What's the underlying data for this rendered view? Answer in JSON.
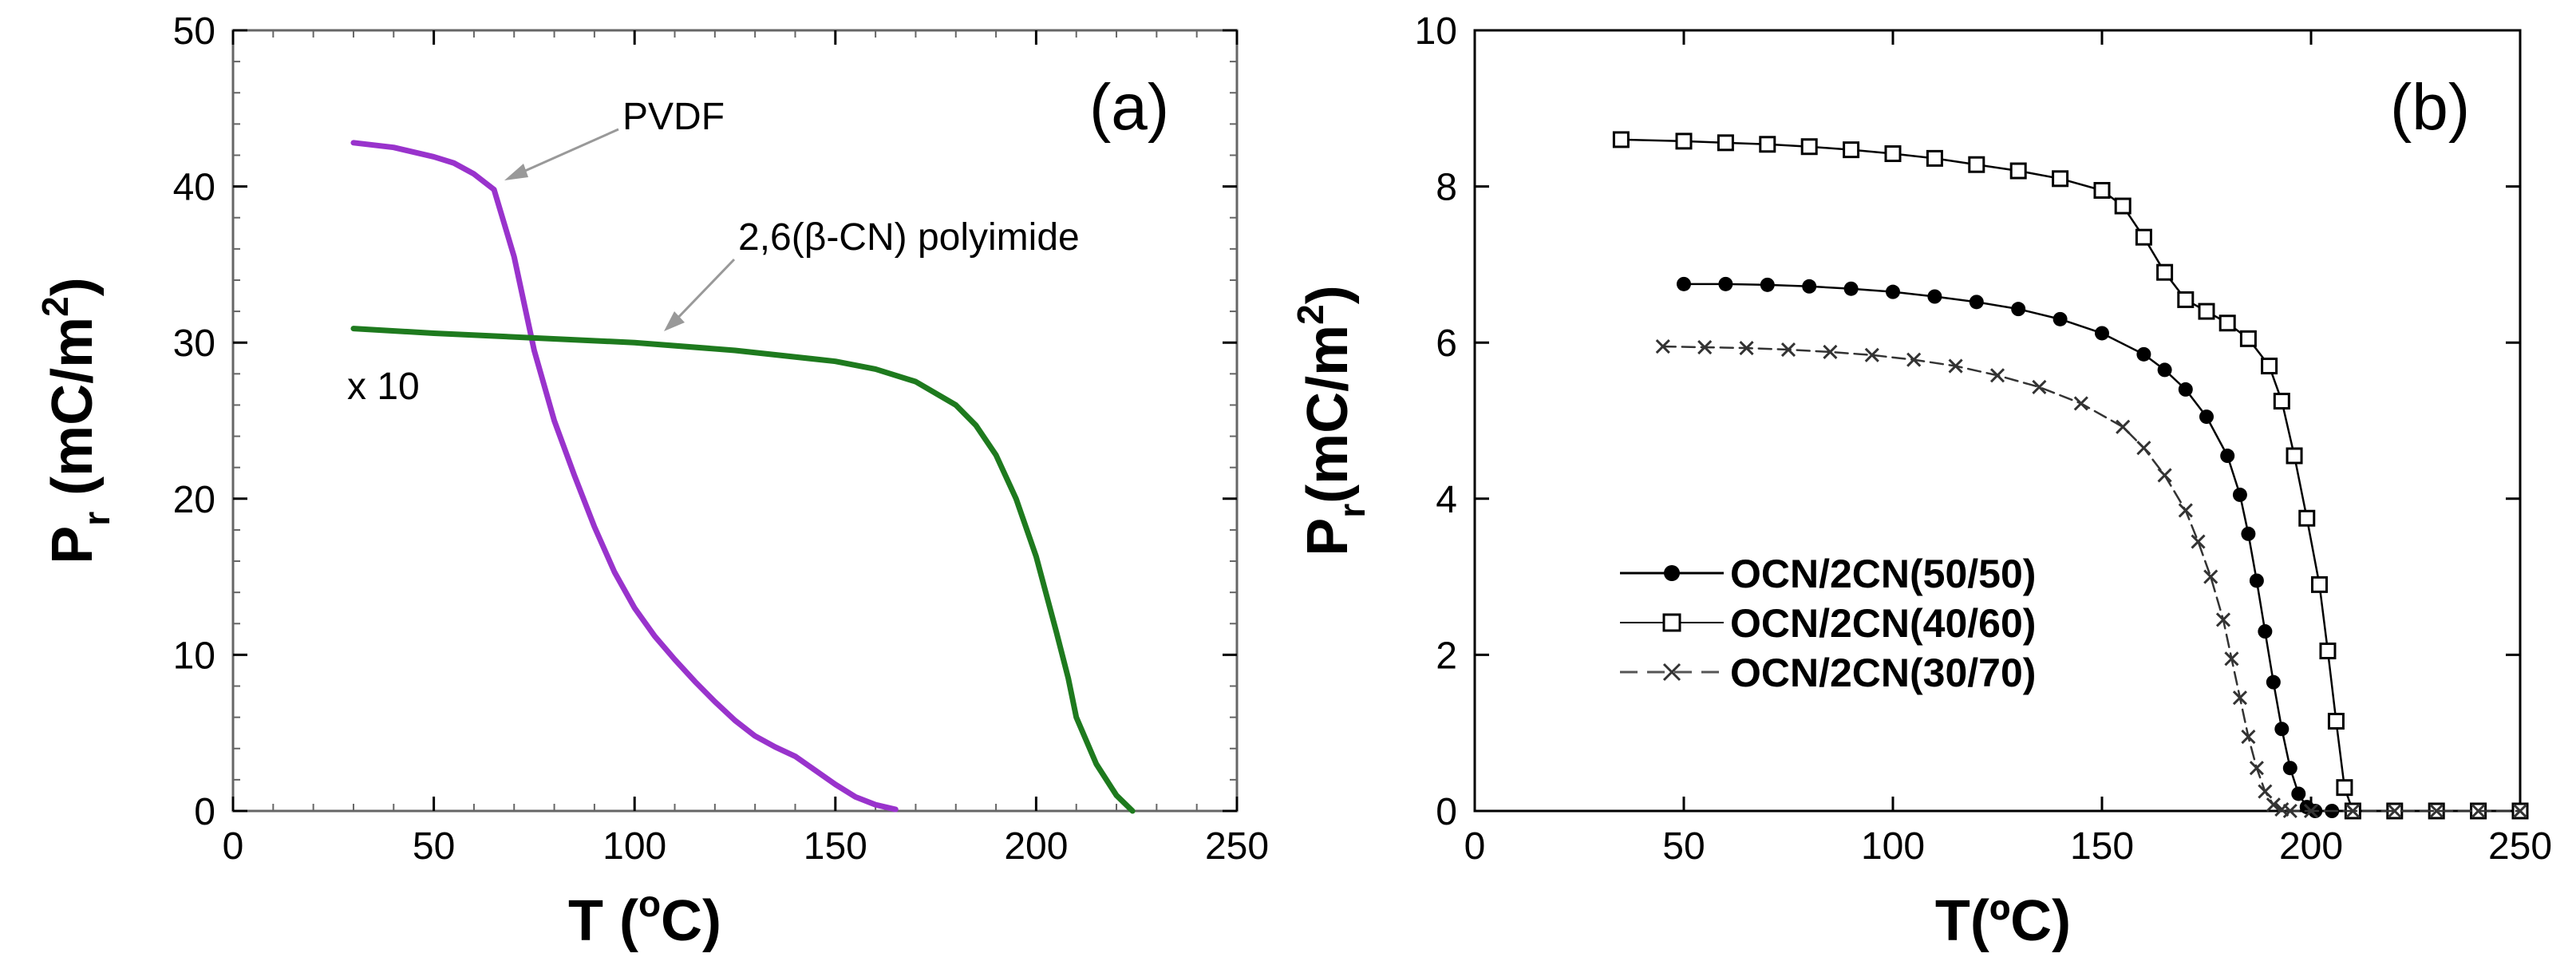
{
  "chart_data": [
    {
      "type": "line",
      "panel_label": "(a)",
      "xlabel": {
        "main": "T (",
        "sup": "o",
        "tail": "C)"
      },
      "ylabel": {
        "main": "P",
        "sub": "r",
        "mid": " (mC/m",
        "sup": "2",
        "tail": ")"
      },
      "xlim": [
        0,
        250
      ],
      "ylim": [
        0,
        50
      ],
      "xticks": [
        0,
        50,
        100,
        150,
        200,
        250
      ],
      "yticks": [
        0,
        10,
        20,
        30,
        40,
        50
      ],
      "grid": false,
      "annotations": [
        "PVDF",
        "2,6(β-CN) polyimide",
        "x 10"
      ],
      "series": [
        {
          "name": "PVDF",
          "color": "#9933CC",
          "x": [
            30,
            40,
            50,
            55,
            60,
            65,
            70,
            75,
            80,
            85,
            90,
            95,
            100,
            105,
            110,
            115,
            120,
            125,
            130,
            135,
            140,
            145,
            150,
            155,
            160,
            165
          ],
          "y": [
            42.8,
            42.5,
            41.9,
            41.5,
            40.8,
            39.8,
            35.5,
            29.5,
            25.0,
            21.5,
            18.2,
            15.3,
            13.0,
            11.2,
            9.7,
            8.3,
            7.0,
            5.8,
            4.8,
            4.1,
            3.5,
            2.6,
            1.7,
            0.9,
            0.4,
            0.1
          ]
        },
        {
          "name": "2,6(β-CN) polyimide",
          "color": "#1E7A1E",
          "x": [
            30,
            50,
            75,
            100,
            125,
            150,
            160,
            170,
            180,
            185,
            190,
            195,
            200,
            205,
            208,
            210,
            215,
            220,
            224
          ],
          "y": [
            30.9,
            30.6,
            30.3,
            30.0,
            29.5,
            28.8,
            28.3,
            27.5,
            26.0,
            24.7,
            22.8,
            20.0,
            16.3,
            11.5,
            8.5,
            6.0,
            3.0,
            1.0,
            0.0
          ]
        }
      ]
    },
    {
      "type": "line",
      "panel_label": "(b)",
      "xlabel": {
        "main": "T(",
        "sup": "",
        "tail": "ºC)"
      },
      "ylabel": {
        "main": "P",
        "sub": "r",
        "mid": "(mC/m",
        "sup": "2",
        "tail": ")"
      },
      "xlim": [
        0,
        250
      ],
      "ylim": [
        0,
        10
      ],
      "xticks": [
        0,
        50,
        100,
        150,
        200,
        250
      ],
      "yticks": [
        0,
        2,
        4,
        6,
        8,
        10
      ],
      "grid": false,
      "legend_position": "lower-left",
      "series": [
        {
          "name": "OCN/2CN(50/50)",
          "marker": "filled-circle",
          "color": "#000000",
          "x": [
            50,
            60,
            70,
            80,
            90,
            100,
            110,
            120,
            130,
            140,
            150,
            160,
            165,
            170,
            175,
            180,
            183,
            185,
            187,
            189,
            191,
            193,
            195,
            197,
            199,
            201,
            205,
            210,
            220,
            230,
            240,
            250
          ],
          "y": [
            6.75,
            6.75,
            6.74,
            6.72,
            6.69,
            6.65,
            6.59,
            6.52,
            6.43,
            6.3,
            6.12,
            5.85,
            5.65,
            5.4,
            5.05,
            4.55,
            4.05,
            3.55,
            2.95,
            2.3,
            1.65,
            1.05,
            0.55,
            0.22,
            0.05,
            0.0,
            0.0,
            0.0,
            0.0,
            0.0,
            0.0,
            0.0
          ]
        },
        {
          "name": "OCN/2CN(40/60)",
          "marker": "open-square",
          "color": "#000000",
          "x": [
            35,
            50,
            60,
            70,
            80,
            90,
            100,
            110,
            120,
            130,
            140,
            150,
            155,
            160,
            165,
            170,
            175,
            180,
            185,
            190,
            193,
            196,
            199,
            202,
            204,
            206,
            208,
            210,
            220,
            230,
            240,
            250
          ],
          "y": [
            8.6,
            8.58,
            8.56,
            8.54,
            8.51,
            8.47,
            8.42,
            8.36,
            8.28,
            8.2,
            8.1,
            7.95,
            7.75,
            7.35,
            6.9,
            6.55,
            6.4,
            6.25,
            6.05,
            5.7,
            5.25,
            4.55,
            3.75,
            2.9,
            2.05,
            1.15,
            0.3,
            0.0,
            0.0,
            0.0,
            0.0,
            0.0
          ]
        },
        {
          "name": "OCN/2CN(30/70)",
          "marker": "cross",
          "color": "#333333",
          "x": [
            45,
            55,
            65,
            75,
            85,
            95,
            105,
            115,
            125,
            135,
            145,
            155,
            160,
            165,
            170,
            173,
            176,
            179,
            181,
            183,
            185,
            187,
            189,
            191,
            193,
            195,
            200,
            210,
            220,
            230,
            240,
            250
          ],
          "y": [
            5.95,
            5.94,
            5.93,
            5.91,
            5.88,
            5.84,
            5.78,
            5.7,
            5.58,
            5.43,
            5.22,
            4.92,
            4.65,
            4.3,
            3.85,
            3.45,
            3.0,
            2.45,
            1.95,
            1.45,
            0.95,
            0.55,
            0.25,
            0.08,
            0.02,
            0.0,
            0.0,
            0.0,
            0.0,
            0.0,
            0.0,
            0.0
          ]
        }
      ]
    }
  ]
}
